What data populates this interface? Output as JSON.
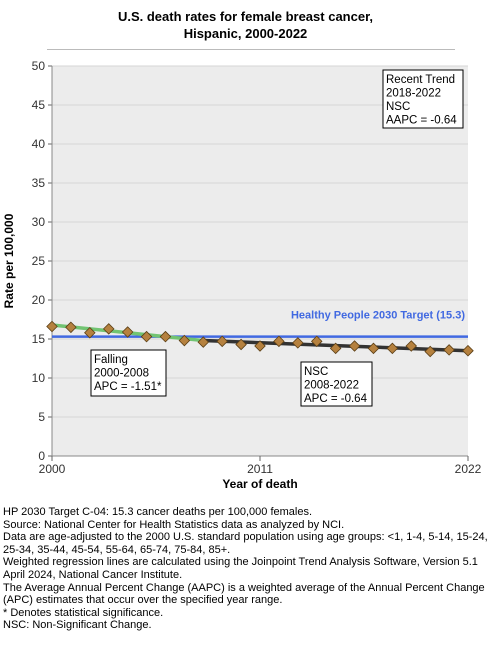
{
  "chart_data": {
    "type": "line",
    "title": "U.S. death rates for female breast cancer,",
    "subtitle": "Hispanic,  2000-2022",
    "xlabel": "Year of death",
    "ylabel": "Rate per 100,000",
    "xlim": [
      2000,
      2022
    ],
    "ylim": [
      0,
      50
    ],
    "x_ticks": [
      "2000",
      "2011",
      "2022"
    ],
    "y_ticks": [
      "0",
      "5",
      "10",
      "15",
      "20",
      "25",
      "30",
      "35",
      "40",
      "45",
      "50"
    ],
    "grid": "horizontal",
    "observed": {
      "x": [
        2000,
        2001,
        2002,
        2003,
        2004,
        2005,
        2006,
        2007,
        2008,
        2009,
        2010,
        2011,
        2012,
        2013,
        2014,
        2015,
        2016,
        2017,
        2018,
        2019,
        2020,
        2021,
        2022
      ],
      "y": [
        16.6,
        16.5,
        15.8,
        16.3,
        15.9,
        15.3,
        15.3,
        14.8,
        14.6,
        14.7,
        14.3,
        14.1,
        14.7,
        14.5,
        14.7,
        13.8,
        14.1,
        13.8,
        13.8,
        14.1,
        13.4,
        13.6,
        13.5
      ]
    },
    "segments": [
      {
        "x": [
          2000,
          2008
        ],
        "y": [
          16.8,
          14.8
        ],
        "color": "#72c472"
      },
      {
        "x": [
          2008,
          2022
        ],
        "y": [
          14.8,
          13.5
        ],
        "color": "#333333"
      }
    ],
    "target_line": {
      "value": 15.3,
      "label": "Healthy People 2030 Target (15.3)",
      "color": "#4169e1"
    },
    "annotations": [
      {
        "lines": [
          "Recent Trend",
          "2018-2022",
          "NSC",
          "AAPC = -0.64"
        ],
        "position": "top-right"
      },
      {
        "lines": [
          "Falling",
          "2000-2008",
          "APC = -1.51*"
        ],
        "position": "lower-left"
      },
      {
        "lines": [
          "NSC",
          "2008-2022",
          "APC = -0.64"
        ],
        "position": "lower-middle"
      }
    ]
  },
  "notes": [
    "HP 2030 Target C-04: 15.3 cancer deaths per 100,000 females.",
    "Source: National Center for Health Statistics data as analyzed by NCI.",
    "Data are age-adjusted to the 2000 U.S. standard population using age groups: <1, 1-4, 5-14, 15-24, 25-34, 35-44, 45-54, 55-64, 65-74, 75-84, 85+.",
    "Weighted regression lines are calculated using the Joinpoint Trend Analysis Software, Version 5.1 April 2024, National Cancer Institute.",
    "The Average Annual Percent Change (AAPC) is a weighted average of the Annual Percent Change (APC) estimates that occur over the specified year range.",
    "* Denotes statistical significance.",
    "NSC: Non-Significant Change."
  ],
  "colors": {
    "plot_background": "#ececec",
    "marker_fill": "#b5813f",
    "marker_stroke": "#5a3e15",
    "target_text": "#4169e1"
  }
}
